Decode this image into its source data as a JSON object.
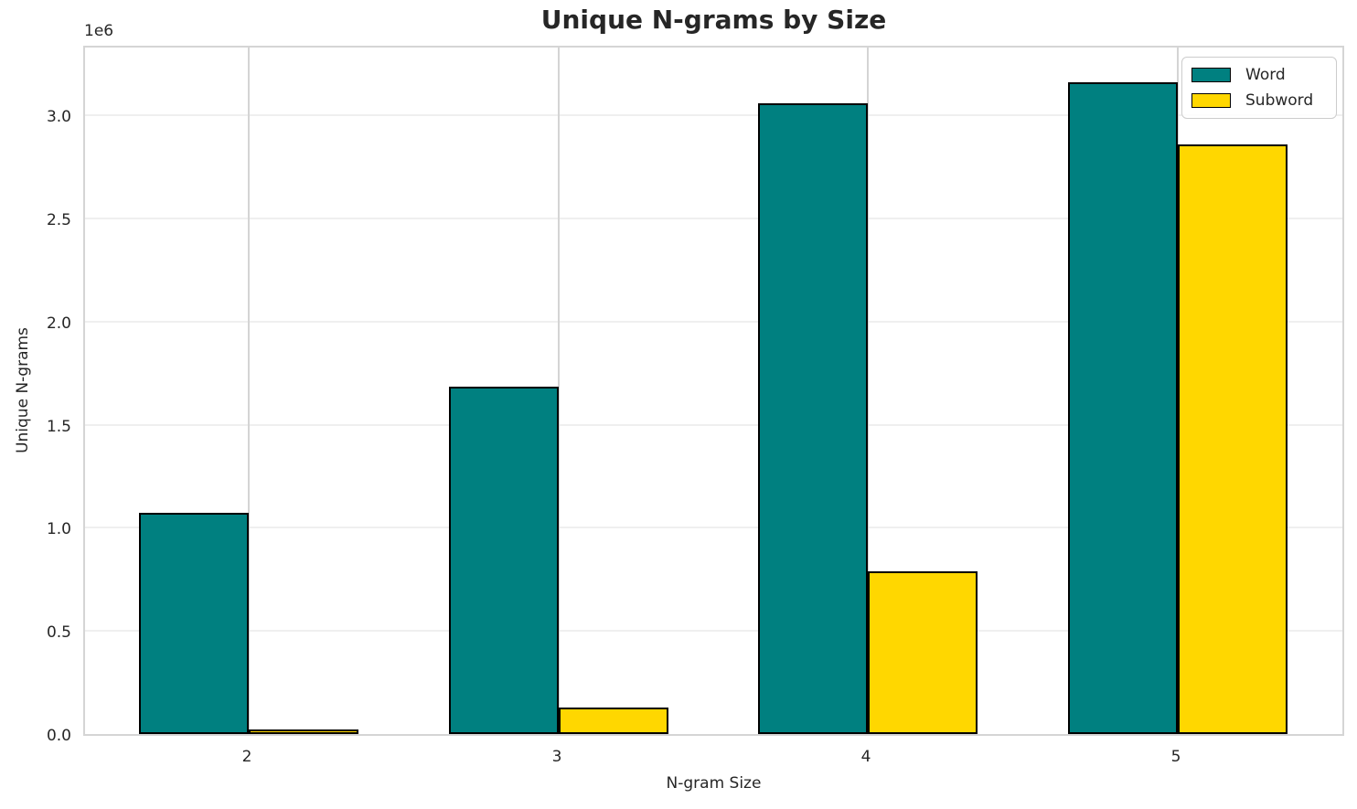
{
  "figure": {
    "background": "#ffffff",
    "text_color": "#262626"
  },
  "chart_data": {
    "type": "bar",
    "title": "Unique N-grams by Size",
    "xlabel": "N-gram Size",
    "ylabel": "Unique N-grams",
    "y_offset_label": "1e6",
    "categories": [
      "2",
      "3",
      "4",
      "5"
    ],
    "series": [
      {
        "name": "Word",
        "color": "#008080",
        "edge_color": "#000000",
        "values": [
          1075000,
          1685000,
          3060000,
          3160000
        ]
      },
      {
        "name": "Subword",
        "color": "#FFD700",
        "edge_color": "#000000",
        "values": [
          20000,
          130000,
          790000,
          2860000
        ]
      }
    ],
    "ylim": [
      0,
      3330000
    ],
    "ytick_values": [
      0,
      500000,
      1000000,
      1500000,
      2000000,
      2500000,
      3000000
    ],
    "ytick_labels": [
      "0.0",
      "0.5",
      "1.0",
      "1.5",
      "2.0",
      "2.5",
      "3.0"
    ],
    "grid": true,
    "legend_position": "upper right"
  }
}
